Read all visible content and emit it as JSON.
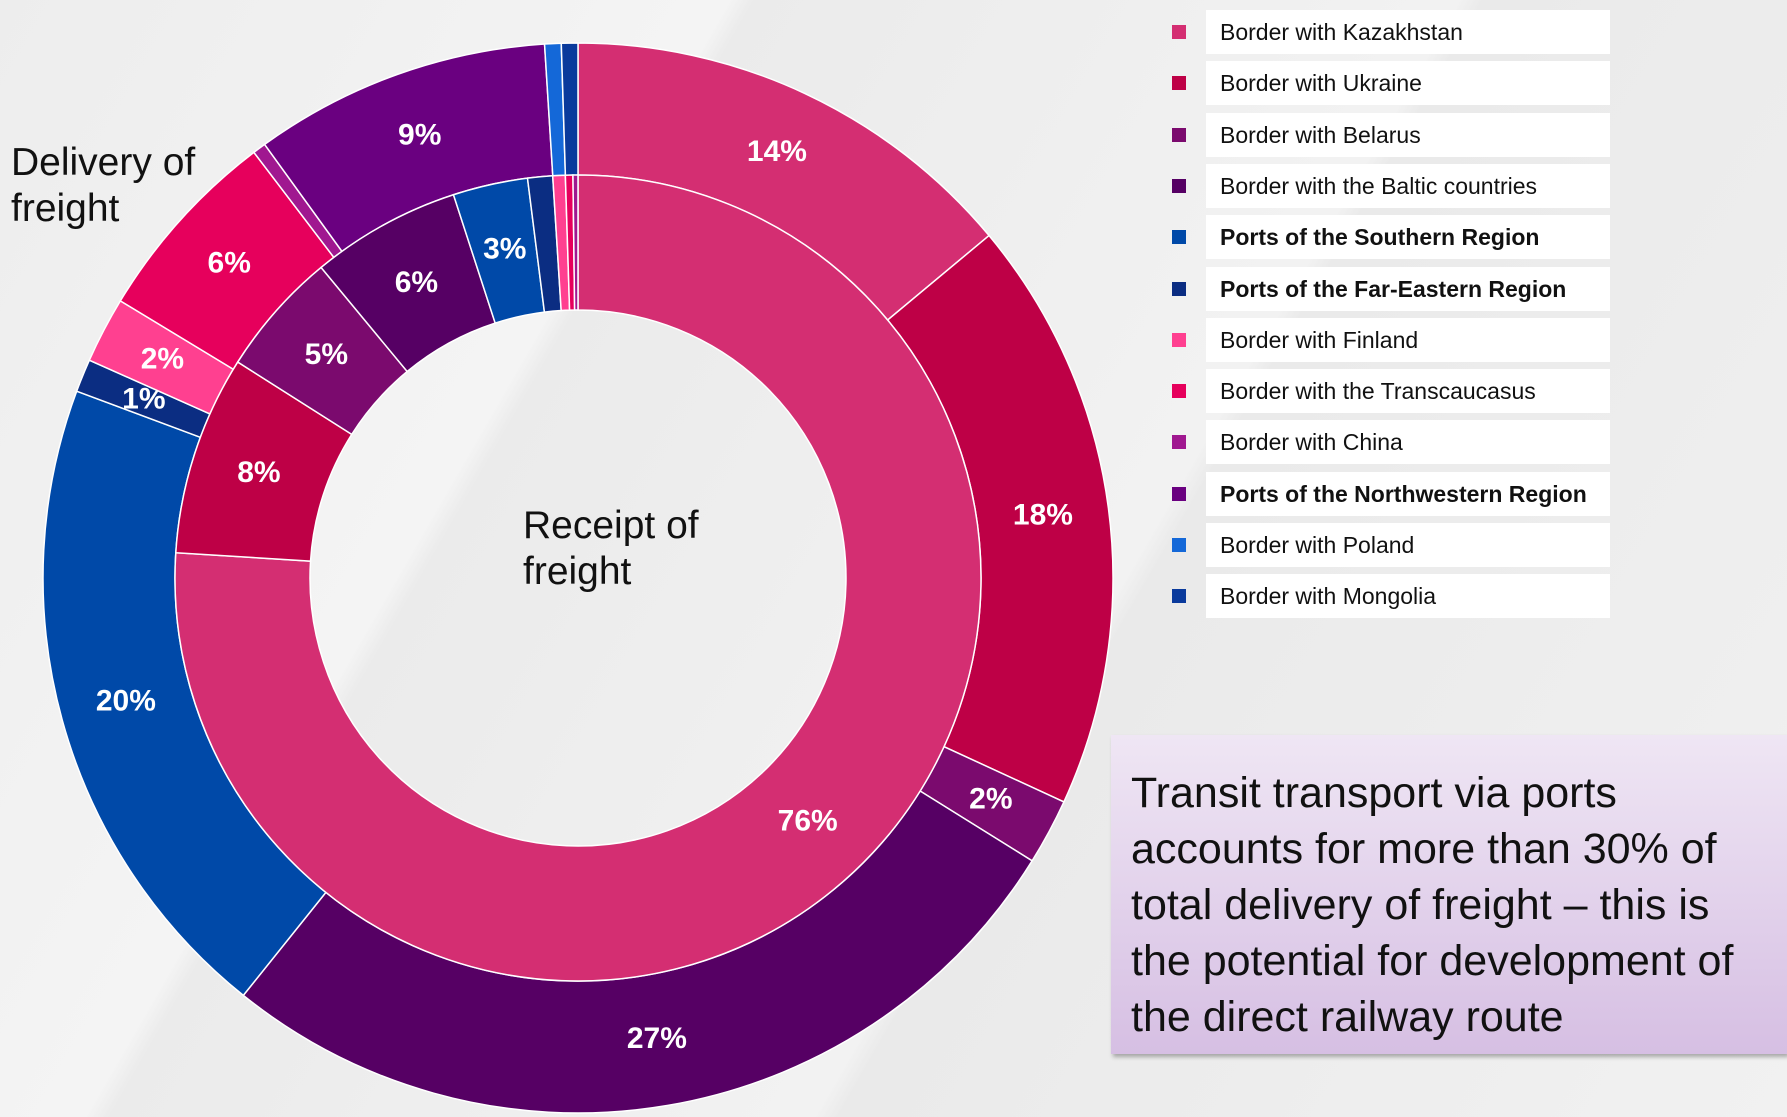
{
  "chart_data": {
    "type": "donut",
    "categories": [
      "Border with Kazakhstan",
      "Border with Ukraine",
      "Border with Belarus",
      "Border with the Baltic countries",
      "Ports of the Southern Region",
      "Ports of the Far-Eastern Region",
      "Border with Finland",
      "Border with the Transcaucasus",
      "Border with China",
      "Ports of the Northwestern Region",
      "Border with Poland",
      "Border with Mongolia"
    ],
    "colors": [
      "#d42e72",
      "#be0046",
      "#7b0a6e",
      "#560064",
      "#0049a8",
      "#0b2d82",
      "#ff4090",
      "#e6005c",
      "#a01890",
      "#6a0080",
      "#1468d8",
      "#0a3a9c"
    ],
    "series": [
      {
        "name": "Delivery of freight",
        "ring": "outer",
        "values": [
          14,
          18,
          2,
          27,
          20,
          1,
          2,
          6,
          0.4,
          9,
          0.5,
          0.5
        ],
        "value_labels": [
          "14%",
          "18%",
          "2%",
          "27%",
          "20%",
          "1%",
          "2%",
          "6%",
          null,
          "9%",
          null,
          null
        ]
      },
      {
        "name": "Receipt of freight",
        "ring": "inner",
        "values": [
          76,
          8,
          5,
          6,
          3,
          1,
          0.5,
          0.3,
          0.2,
          0,
          0,
          0
        ],
        "value_labels": [
          "76%",
          "8%",
          "5%",
          "6%",
          "3%",
          null,
          null,
          null,
          null,
          null,
          null,
          null
        ]
      }
    ],
    "annotation": "Transit transport via ports accounts for more than 30% of total delivery of freight – this is the potential for development of the direct railway route"
  }
}
